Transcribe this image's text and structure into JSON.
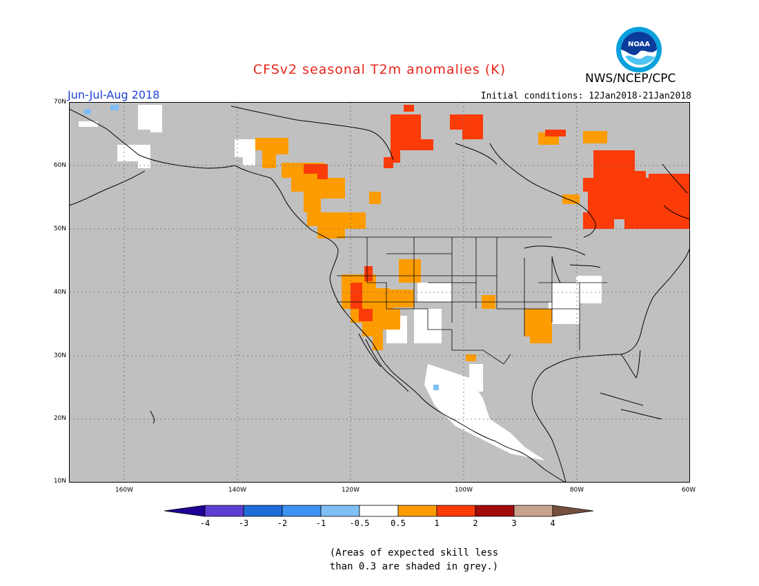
{
  "title": "CFSv2 seasonal T2m anomalies (K)",
  "season": "Jun-Jul-Aug 2018",
  "initial_conditions": "Initial conditions: 12Jan2018-21Jan2018",
  "agency": "NWS/NCEP/CPC",
  "logo_text": "NOAA",
  "colors": {
    "title": "#e8261a",
    "season": "#1b3fd6",
    "grey": "#c0c0c0",
    "orange": "#fd9c00",
    "red_orange": "#fb3b08",
    "white": "#ffffff"
  },
  "lat_ticks": [
    "70N",
    "60N",
    "50N",
    "40N",
    "30N",
    "20N",
    "10N"
  ],
  "lon_ticks": [
    "160W",
    "140W",
    "120W",
    "100W",
    "80W",
    "60W"
  ],
  "colorbar": {
    "labels": [
      "-4",
      "-3",
      "-2",
      "-1",
      "-0.5",
      "0.5",
      "1",
      "2",
      "3",
      "4"
    ],
    "colors": [
      "#1e0096",
      "#5e3ed2",
      "#1f6bd8",
      "#3d93ef",
      "#7fbff5",
      "#ffffff",
      "#fd9c00",
      "#fb3b08",
      "#a10b0b",
      "#c8a28d",
      "#774f3f"
    ]
  },
  "note_line1": "(Areas of expected skill less",
  "note_line2": "than 0.3 are shaded in grey.)"
}
